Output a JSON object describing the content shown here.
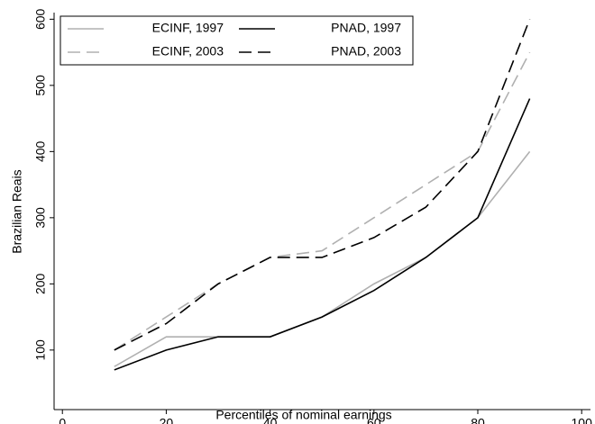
{
  "chart_data": {
    "type": "line",
    "xlabel": "Percentiles of nominal earnings",
    "ylabel": "Brazilian Reais",
    "x": [
      10,
      20,
      30,
      40,
      50,
      60,
      70,
      80,
      90
    ],
    "series": [
      {
        "name": "ECINF, 1997",
        "color": "#b0b0b0",
        "dash": false,
        "values": [
          75,
          120,
          120,
          120,
          150,
          200,
          240,
          300,
          400
        ]
      },
      {
        "name": "PNAD, 1997",
        "color": "#000000",
        "dash": false,
        "values": [
          70,
          100,
          120,
          120,
          150,
          190,
          240,
          300,
          480
        ]
      },
      {
        "name": "ECINF, 2003",
        "color": "#b0b0b0",
        "dash": true,
        "values": [
          100,
          150,
          200,
          240,
          250,
          300,
          350,
          400,
          550
        ]
      },
      {
        "name": "PNAD, 2003",
        "color": "#000000",
        "dash": true,
        "values": [
          100,
          140,
          200,
          240,
          240,
          270,
          316,
          400,
          600
        ]
      }
    ],
    "xlim": [
      -1.6,
      101.7
    ],
    "xticks": [
      0,
      20,
      40,
      60,
      80,
      100
    ],
    "ylim": [
      10,
      610
    ],
    "yticks": [
      100,
      200,
      300,
      400,
      500,
      600
    ],
    "grid": false,
    "legend": "top-left"
  }
}
